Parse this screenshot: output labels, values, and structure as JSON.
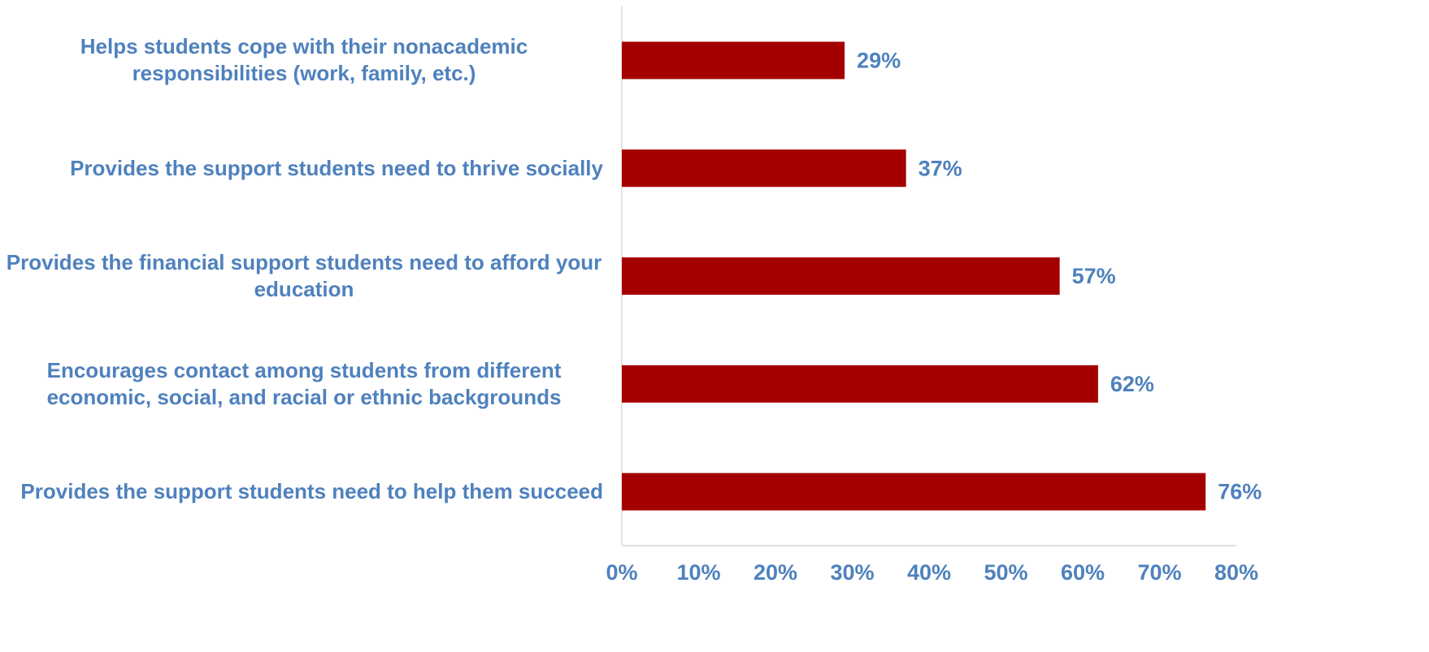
{
  "chart_data": {
    "type": "bar",
    "orientation": "horizontal",
    "categories": [
      "Helps students cope with their nonacademic responsibilities (work, family, etc.)",
      "Provides the support students need to thrive socially",
      "Provides the financial support students need to afford your education",
      "Encourages contact among students from different economic, social, and racial or ethnic backgrounds",
      "Provides the support students need to help them succeed"
    ],
    "values": [
      29,
      37,
      57,
      62,
      76
    ],
    "value_labels": [
      "29%",
      "37%",
      "57%",
      "62%",
      "76%"
    ],
    "color": "#a50000",
    "xlim": [
      0,
      80
    ],
    "xticks": [
      {
        "value": 0,
        "label": "0%"
      },
      {
        "value": 10,
        "label": "10%"
      },
      {
        "value": 20,
        "label": "20%"
      },
      {
        "value": 30,
        "label": "30%"
      },
      {
        "value": 40,
        "label": "40%"
      },
      {
        "value": 50,
        "label": "50%"
      },
      {
        "value": 60,
        "label": "60%"
      },
      {
        "value": 70,
        "label": "70%"
      },
      {
        "value": 80,
        "label": "80%"
      }
    ],
    "grid": false
  }
}
